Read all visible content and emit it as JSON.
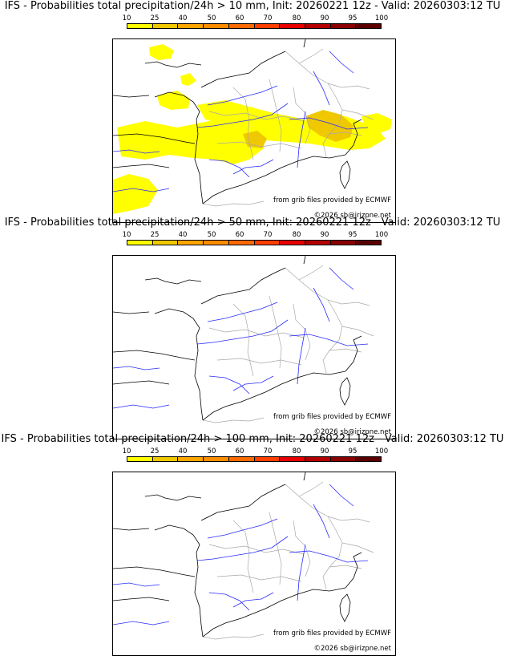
{
  "legend": {
    "ticks": [
      "10",
      "25",
      "40",
      "50",
      "60",
      "70",
      "80",
      "90",
      "95",
      "100"
    ],
    "colors": [
      "#ffff00",
      "#f0c800",
      "#ffa500",
      "#ff8c00",
      "#ff6a00",
      "#ff3f00",
      "#e60000",
      "#b40000",
      "#8b0000",
      "#5a0000"
    ]
  },
  "map_panels": [
    {
      "title": "IFS - Probabilities total precipitation/24h > 10 mm, Init: 20260221 12z - Valid: 20260303:12 TU",
      "threshold_mm": 10,
      "has_precip_area": true,
      "source_text": "from grib files provided by ECMWF",
      "copyright_text": "©2026 sb@irizpne.net"
    },
    {
      "title": "IFS - Probabilities total precipitation/24h > 50 mm, Init: 20260221 12z - Valid: 20260303:12 TU",
      "threshold_mm": 50,
      "has_precip_area": false,
      "source_text": "from grib files provided by ECMWF",
      "copyright_text": "©2026 sb@irizpne.net"
    },
    {
      "title": "IFS - Probabilities total precipitation/24h > 100 mm, Init: 20260221 12z - Valid: 20260303:12 TU",
      "threshold_mm": 100,
      "has_precip_area": false,
      "source_text": "from grib files provided by ECMWF",
      "copyright_text": "©2026 sb@irizpne.net"
    }
  ]
}
